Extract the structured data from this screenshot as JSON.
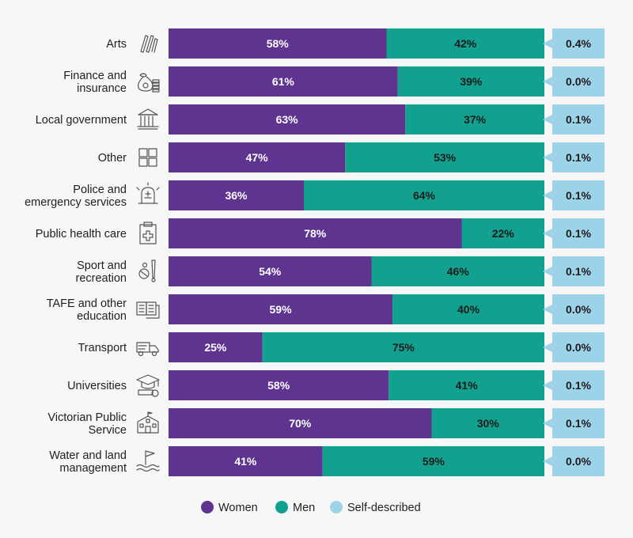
{
  "chart_data": {
    "type": "bar",
    "orientation": "horizontal",
    "stacked": true,
    "categories": [
      [
        "Arts"
      ],
      [
        "Finance and",
        "insurance"
      ],
      [
        "Local government"
      ],
      [
        "Other"
      ],
      [
        "Police and",
        "emergency services"
      ],
      [
        "Public health care"
      ],
      [
        "Sport and",
        "recreation"
      ],
      [
        "TAFE and other",
        "education"
      ],
      [
        "Transport"
      ],
      [
        "Universities"
      ],
      [
        "Victorian Public",
        "Service"
      ],
      [
        "Water and land",
        "management"
      ]
    ],
    "icons": [
      "brushes-icon",
      "money-bag-icon",
      "government-building-icon",
      "grid-squares-icon",
      "siren-icon",
      "clipboard-medical-icon",
      "sports-equipment-icon",
      "books-icon",
      "truck-icon",
      "graduation-cap-icon",
      "school-building-icon",
      "flag-water-icon"
    ],
    "series": [
      {
        "name": "Women",
        "color": "#5e3490",
        "values": [
          58,
          61,
          63,
          47,
          36,
          78,
          54,
          59,
          25,
          58,
          70,
          41
        ]
      },
      {
        "name": "Men",
        "color": "#12a08f",
        "values": [
          42,
          39,
          37,
          53,
          64,
          22,
          46,
          40,
          75,
          41,
          30,
          59
        ]
      },
      {
        "name": "Self-described",
        "color": "#9dd3e8",
        "values": [
          0.4,
          0.0,
          0.1,
          0.1,
          0.1,
          0.1,
          0.1,
          0.0,
          0.0,
          0.1,
          0.1,
          0.0
        ]
      }
    ],
    "data_labels": {
      "Women": [
        "58%",
        "61%",
        "63%",
        "47%",
        "36%",
        "78%",
        "54%",
        "59%",
        "25%",
        "58%",
        "70%",
        "41%"
      ],
      "Men": [
        "42%",
        "39%",
        "37%",
        "53%",
        "64%",
        "22%",
        "46%",
        "40%",
        "75%",
        "41%",
        "30%",
        "59%"
      ],
      "Self-described": [
        "0.4%",
        "0.0%",
        "0.1%",
        "0.1%",
        "0.1%",
        "0.1%",
        "0.1%",
        "0.0%",
        "0.0%",
        "0.1%",
        "0.1%",
        "0.0%"
      ]
    },
    "legend": {
      "placement": "bottom-center",
      "entries": [
        {
          "label": "Women",
          "color": "#5e3490"
        },
        {
          "label": "Men",
          "color": "#12a08f"
        },
        {
          "label": "Self-described",
          "color": "#9dd3e8"
        }
      ]
    }
  }
}
